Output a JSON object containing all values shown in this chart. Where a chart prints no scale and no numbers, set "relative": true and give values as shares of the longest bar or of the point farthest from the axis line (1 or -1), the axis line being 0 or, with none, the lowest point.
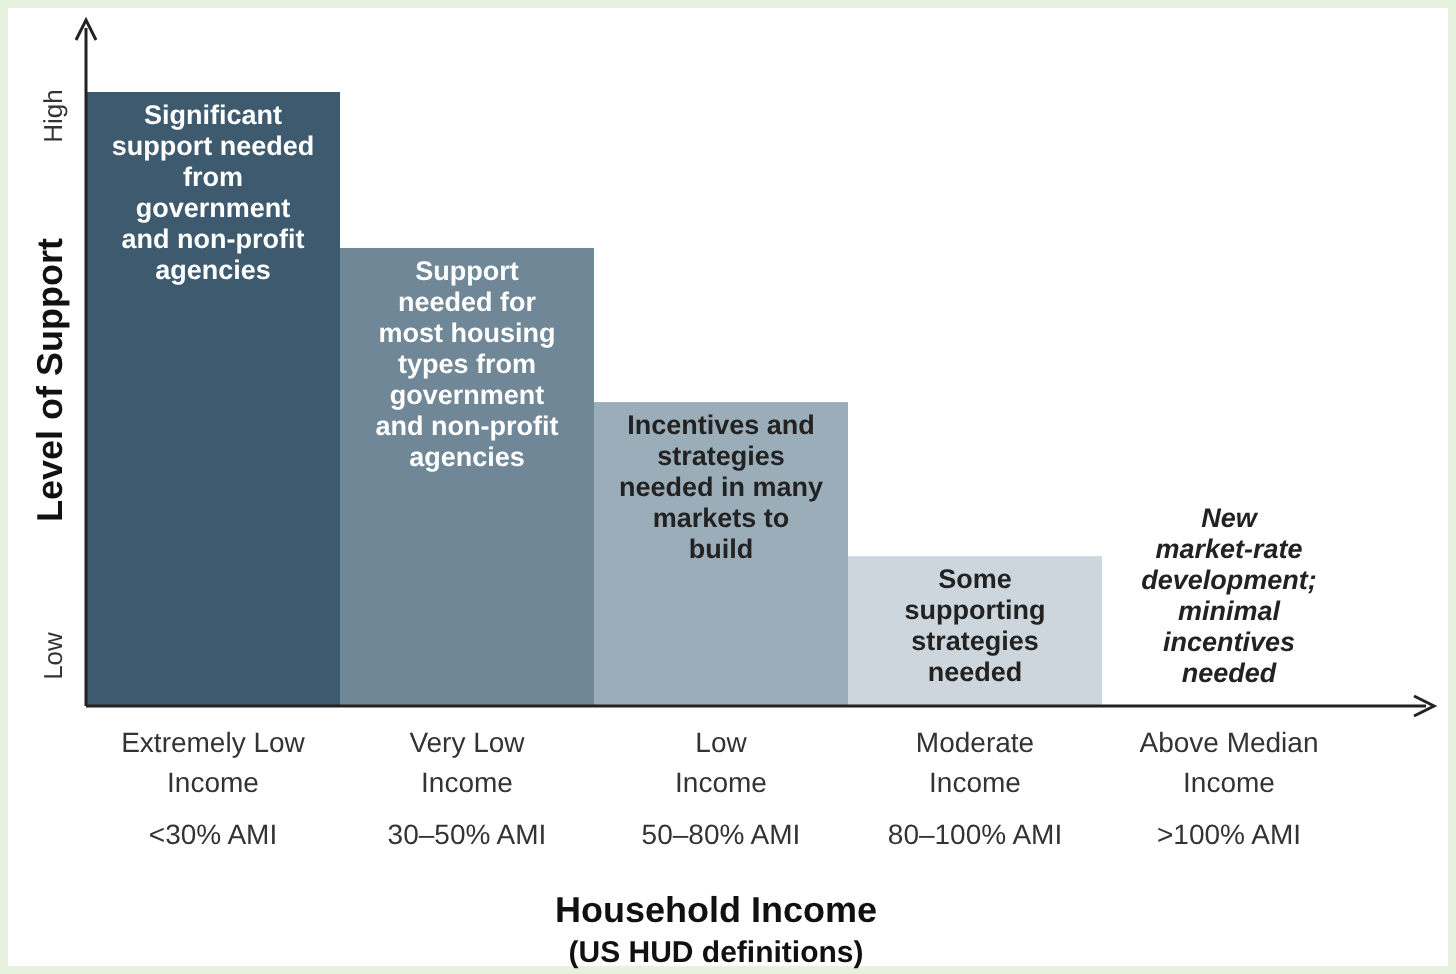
{
  "chart_data": {
    "type": "bar",
    "relative": true,
    "xlabel": "Household Income\n(US HUD definitions)",
    "ylabel": "Level of Support",
    "annotations": [
      "High",
      "Low",
      "Significant\nsupport needed\nfrom\ngovernment\nand non-profit\nagencies",
      "Support\nneeded for\nmost housing\ntypes from\ngovernment\nand non-profit\nagencies",
      "Incentives and\nstrategies\nneeded in many\nmarkets to\nbuild",
      "Some\nsupporting\nstrategies\nneeded",
      "New\nmarket-rate\ndevelopment;\nminimal\nincentives\nneeded"
    ],
    "categories": [
      "Extremely Low\nIncome\n<30% AMI",
      "Very Low\nIncome\n30–50% AMI",
      "Low\nIncome\n50–80% AMI",
      "Moderate\nIncome\n80–100% AMI",
      "Above Median\nIncome\n>100% AMI"
    ],
    "values": [
      1,
      0.746,
      0.495,
      0.244,
      0
    ],
    "colors": [
      "#3d5a6e",
      "#6f8797",
      "#9aadb8",
      "#cdd6dc",
      "#cdd6dc"
    ]
  }
}
